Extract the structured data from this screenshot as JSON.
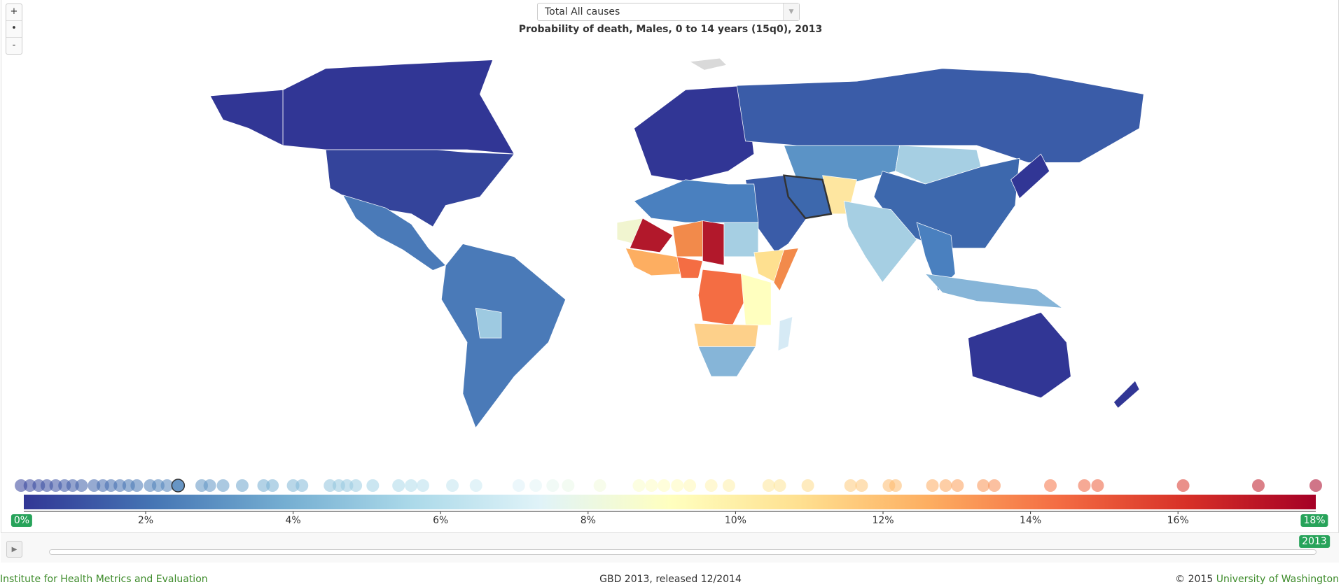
{
  "zoom_controls": {
    "zoom_in": "+",
    "reset": "•",
    "zoom_out": "-"
  },
  "cause_select": {
    "value": "Total All causes",
    "arrow_icon": "chevron-down-icon"
  },
  "title": "Probability of death, Males, 0 to 14 years (15q0), 2013",
  "colors": {
    "accent": "#27a35a",
    "footer_link": "#3d8b2a",
    "scale": [
      "#313695",
      "#4575b4",
      "#74add1",
      "#abd9e9",
      "#e0f3f8",
      "#ffffbf",
      "#fee090",
      "#fdae61",
      "#f46d43",
      "#d73027",
      "#a50026"
    ]
  },
  "legend": {
    "min_label": "0%",
    "max_label": "18%",
    "range": [
      0,
      18
    ],
    "ticks": [
      "2%",
      "4%",
      "6%",
      "8%",
      "10%",
      "12%",
      "14%",
      "16%"
    ],
    "tick_values": [
      2,
      4,
      6,
      8,
      10,
      12,
      14,
      16
    ],
    "selected_value": 2.44,
    "country_values": [
      0.31,
      0.43,
      0.55,
      0.66,
      0.78,
      0.9,
      1.01,
      1.13,
      1.3,
      1.42,
      1.53,
      1.65,
      1.77,
      1.88,
      2.06,
      2.17,
      2.29,
      2.44,
      2.76,
      2.87,
      3.05,
      3.31,
      3.6,
      3.72,
      4.0,
      4.12,
      4.5,
      4.62,
      4.73,
      4.85,
      5.08,
      5.43,
      5.6,
      5.76,
      6.16,
      6.48,
      7.06,
      7.29,
      7.52,
      7.73,
      8.16,
      8.69,
      8.86,
      9.03,
      9.21,
      9.38,
      9.67,
      9.91,
      10.45,
      10.6,
      10.98,
      11.56,
      11.71,
      12.08,
      12.17,
      12.67,
      12.85,
      13.01,
      13.36,
      13.51,
      14.27,
      14.73,
      14.91,
      16.07,
      17.09,
      17.87
    ]
  },
  "timeline": {
    "play_icon": "play-icon",
    "year": "2013",
    "progress": 1.0
  },
  "footer": {
    "left": "Institute for Health Metrics and Evaluation",
    "center": "GBD 2013, released 12/2014",
    "copyright": "© 2015",
    "right_link": "University of Washington"
  }
}
